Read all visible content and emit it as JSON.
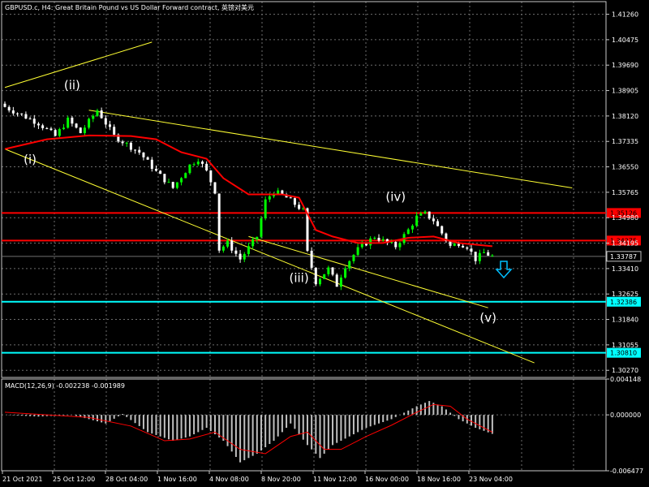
{
  "chart_data": {
    "type": "candlestick",
    "title": "GBPUSD.c, H4:  Great Britain Pound vs US Dollar Forward contract, 英镑对美元",
    "colors": {
      "background": "#000000",
      "grid": "#6e6e6e",
      "bull": "#00ff00",
      "bear": "#ffffff",
      "ma": "#ff0000",
      "trend": "#ffff33",
      "support": "#00ffff",
      "resistance": "#ff0000",
      "arrow": "#00bfff",
      "macd_hist": "#c0c0c0",
      "macd_signal": "#ff0000"
    },
    "price_axis": {
      "ticks": [
        "1.41260",
        "1.40475",
        "1.39690",
        "1.38905",
        "1.38120",
        "1.37335",
        "1.36550",
        "1.35765",
        "1.34980",
        "1.34195",
        "1.33410",
        "1.32625",
        "1.31840",
        "1.31055",
        "1.30270"
      ],
      "range": [
        1.3005,
        1.4165
      ]
    },
    "time_axis": {
      "ticks": [
        "21 Oct 2021",
        "25 Oct 12:00",
        "28 Oct 04:00",
        "1 Nov 16:00",
        "4 Nov 08:00",
        "8 Nov 20:00",
        "11 Nov 12:00",
        "16 Nov 00:00",
        "18 Nov 16:00",
        "23 Nov 04:00"
      ],
      "bar_count": 117
    },
    "close_path": [
      [
        0,
        1.384
      ],
      [
        8,
        1.379
      ],
      [
        12,
        1.375
      ],
      [
        15,
        1.38
      ],
      [
        18,
        1.376
      ],
      [
        22,
        1.383
      ],
      [
        26,
        1.375
      ],
      [
        32,
        1.37
      ],
      [
        36,
        1.364
      ],
      [
        40,
        1.359
      ],
      [
        44,
        1.366
      ],
      [
        46,
        1.368
      ],
      [
        48,
        1.364
      ],
      [
        50,
        1.358
      ],
      [
        51,
        1.34
      ],
      [
        53,
        1.342
      ],
      [
        56,
        1.337
      ],
      [
        60,
        1.344
      ],
      [
        62,
        1.355
      ],
      [
        64,
        1.358
      ],
      [
        67,
        1.356
      ],
      [
        71,
        1.352
      ],
      [
        72,
        1.339
      ],
      [
        74,
        1.33
      ],
      [
        77,
        1.334
      ],
      [
        79,
        1.329
      ],
      [
        81,
        1.335
      ],
      [
        84,
        1.34
      ],
      [
        88,
        1.344
      ],
      [
        91,
        1.342
      ],
      [
        93,
        1.341
      ],
      [
        96,
        1.346
      ],
      [
        98,
        1.35
      ],
      [
        100,
        1.351
      ],
      [
        102,
        1.349
      ],
      [
        104,
        1.345
      ],
      [
        106,
        1.341
      ],
      [
        108,
        1.342
      ],
      [
        110,
        1.341
      ],
      [
        112,
        1.337
      ],
      [
        114,
        1.339
      ],
      [
        116,
        1.3379
      ]
    ],
    "moving_average": [
      [
        0,
        1.371
      ],
      [
        10,
        1.374
      ],
      [
        20,
        1.3752
      ],
      [
        30,
        1.375
      ],
      [
        36,
        1.374
      ],
      [
        42,
        1.37
      ],
      [
        48,
        1.368
      ],
      [
        52,
        1.362
      ],
      [
        58,
        1.357
      ],
      [
        66,
        1.357
      ],
      [
        70,
        1.356
      ],
      [
        74,
        1.346
      ],
      [
        78,
        1.344
      ],
      [
        84,
        1.342
      ],
      [
        90,
        1.342
      ],
      [
        96,
        1.3436
      ],
      [
        102,
        1.344
      ],
      [
        108,
        1.342
      ],
      [
        112,
        1.3415
      ],
      [
        116,
        1.341
      ]
    ],
    "horizontal_levels": [
      {
        "value": "1.35126",
        "color": "#ff0000"
      },
      {
        "value": "1.34275",
        "color": "#ff0000"
      },
      {
        "value": "1.33787",
        "color": "#000000",
        "current": true
      },
      {
        "value": "1.32386",
        "color": "#00ffff"
      },
      {
        "value": "1.30810",
        "color": "#00ffff"
      }
    ],
    "trend_lines": [
      [
        [
          0,
          1.39
        ],
        [
          35,
          1.404
        ]
      ],
      [
        [
          20,
          1.383
        ],
        [
          135,
          1.359
        ]
      ],
      [
        [
          0,
          1.371
        ],
        [
          126,
          1.305
        ]
      ],
      [
        [
          58,
          1.344
        ],
        [
          115,
          1.322
        ]
      ]
    ],
    "wave_labels": [
      {
        "text": "(i)",
        "bar": 6,
        "price": 1.3665
      },
      {
        "text": "(ii)",
        "bar": 16,
        "price": 1.3895
      },
      {
        "text": "(iii)",
        "bar": 70,
        "price": 1.33
      },
      {
        "text": "(iv)",
        "bar": 93,
        "price": 1.355
      },
      {
        "text": "(v)",
        "bar": 115,
        "price": 1.3177
      }
    ],
    "macd": {
      "label": "MACD(12,26,9) -0.002238 -0.001989",
      "ticks": [
        "0.004148",
        "0.000000",
        "-0.006477"
      ],
      "range": [
        -0.006477,
        0.004148
      ],
      "histogram_path": [
        [
          0,
          0.0
        ],
        [
          8,
          -0.0002
        ],
        [
          16,
          0.0
        ],
        [
          24,
          -0.001
        ],
        [
          28,
          0.0001
        ],
        [
          34,
          -0.002
        ],
        [
          40,
          -0.003
        ],
        [
          44,
          -0.0025
        ],
        [
          48,
          -0.0015
        ],
        [
          52,
          -0.003
        ],
        [
          56,
          -0.0055
        ],
        [
          60,
          -0.0045
        ],
        [
          64,
          -0.003
        ],
        [
          68,
          -0.001
        ],
        [
          72,
          -0.0035
        ],
        [
          75,
          -0.005
        ],
        [
          78,
          -0.0035
        ],
        [
          82,
          -0.0025
        ],
        [
          86,
          -0.0015
        ],
        [
          92,
          -0.0005
        ],
        [
          98,
          0.001
        ],
        [
          101,
          0.0016
        ],
        [
          104,
          0.001
        ],
        [
          108,
          -0.0005
        ],
        [
          112,
          -0.0015
        ],
        [
          116,
          -0.0022
        ]
      ],
      "signal_path": [
        [
          0,
          0.0003
        ],
        [
          10,
          0.0
        ],
        [
          20,
          -0.0003
        ],
        [
          30,
          -0.0013
        ],
        [
          38,
          -0.003
        ],
        [
          44,
          -0.0028
        ],
        [
          50,
          -0.002
        ],
        [
          56,
          -0.004
        ],
        [
          62,
          -0.0045
        ],
        [
          68,
          -0.0025
        ],
        [
          72,
          -0.002
        ],
        [
          76,
          -0.004
        ],
        [
          80,
          -0.004
        ],
        [
          86,
          -0.0025
        ],
        [
          92,
          -0.0012
        ],
        [
          98,
          0.0003
        ],
        [
          102,
          0.0012
        ],
        [
          106,
          0.001
        ],
        [
          110,
          -0.0005
        ],
        [
          116,
          -0.002
        ]
      ]
    }
  }
}
